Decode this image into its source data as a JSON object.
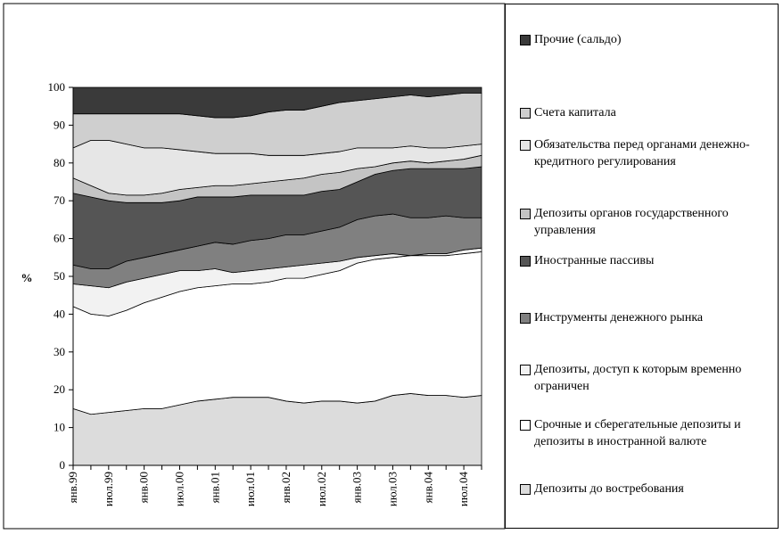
{
  "chart_data": {
    "type": "stacked_area",
    "y_label": "%",
    "categories": [
      "янв.99",
      null,
      "июл.99",
      null,
      "янв.00",
      null,
      "июл.00",
      null,
      "янв.01",
      null,
      "июл.01",
      null,
      "янв.02",
      null,
      "июл.02",
      null,
      "янв.03",
      null,
      "июл.03",
      null,
      "янв.04",
      null,
      "июл.04",
      null
    ],
    "ylim": [
      0,
      100
    ],
    "yticks": [
      0,
      10,
      20,
      30,
      40,
      50,
      60,
      70,
      80,
      90,
      100
    ],
    "series": [
      {
        "name": "Депозиты до востребования",
        "color": "#dcdcdc",
        "values": [
          15,
          13.5,
          14,
          14.5,
          15,
          15,
          16,
          17,
          17.5,
          18,
          18,
          18,
          17,
          16.5,
          17,
          17,
          16.5,
          17,
          18.5,
          19,
          18.5,
          18.5,
          18,
          18.5
        ]
      },
      {
        "name": "Срочные и сберегательные депозиты и депозиты в иностранной валюте",
        "color": "#ffffff",
        "values": [
          27,
          26.5,
          25.5,
          26.5,
          28,
          29.5,
          30,
          30,
          30,
          30,
          30,
          30.5,
          32.5,
          33,
          33.5,
          34.5,
          37,
          37.5,
          36.5,
          36.5,
          37,
          37,
          38,
          38
        ]
      },
      {
        "name": "Депозиты, доступ к которым временно ограничен",
        "color": "#f2f2f2",
        "values": [
          6,
          7.5,
          7.5,
          7.5,
          6.5,
          6,
          5.5,
          4.5,
          4.5,
          3,
          3.5,
          3.5,
          3,
          3.5,
          3,
          2.5,
          1.5,
          1,
          1,
          0,
          0.5,
          0.5,
          1,
          1
        ]
      },
      {
        "name": "Инструменты денежного рынка",
        "color": "#808080",
        "values": [
          5,
          4.5,
          5,
          5.5,
          5.5,
          5.5,
          5.5,
          6.5,
          7,
          7.5,
          8,
          8,
          8.5,
          8,
          8.5,
          9,
          10,
          10.5,
          10.5,
          10,
          9.5,
          10,
          8.5,
          8
        ]
      },
      {
        "name": "Иностранные пассивы",
        "color": "#555555",
        "values": [
          19,
          19,
          18,
          15.5,
          14.5,
          13.5,
          13,
          13,
          12,
          12.5,
          12,
          11.5,
          10.5,
          10.5,
          10.5,
          10,
          10,
          11,
          11.5,
          13,
          13,
          12.5,
          13,
          13.5
        ]
      },
      {
        "name": "Депозиты органов государственного управления",
        "color": "#c4c4c4",
        "values": [
          4,
          3,
          2,
          2,
          2,
          2.5,
          3,
          2.5,
          3,
          3,
          3,
          3.5,
          4,
          4.5,
          4.5,
          4.5,
          3.5,
          2,
          2,
          2,
          1.5,
          2,
          2.5,
          3
        ]
      },
      {
        "name": "Обязательства перед органами денежно-кредитного регулирования",
        "color": "#e6e6e6",
        "values": [
          8,
          12,
          14,
          13.5,
          12.5,
          12,
          10.5,
          9.5,
          8.5,
          8.5,
          8,
          7,
          6.5,
          6,
          5.5,
          5.5,
          5.5,
          5,
          4,
          4,
          4,
          3.5,
          3.5,
          3
        ]
      },
      {
        "name": "Счета капитала",
        "color": "#cfcfcf",
        "values": [
          9,
          7,
          7,
          8,
          9,
          9,
          9.5,
          9.5,
          9.5,
          9.5,
          10,
          11.5,
          12,
          12,
          12.5,
          13,
          12.5,
          13,
          13.5,
          13.5,
          13.5,
          14,
          14,
          13.5
        ]
      },
      {
        "name": "Прочие (сальдо)",
        "color": "#3a3a3a",
        "values": [
          7,
          7,
          7,
          7,
          7,
          7,
          7,
          7.5,
          8,
          8,
          7.5,
          6.5,
          6,
          6,
          5,
          4,
          3.5,
          3,
          2.5,
          2,
          2.5,
          2,
          1.5,
          1.5
        ]
      }
    ]
  }
}
